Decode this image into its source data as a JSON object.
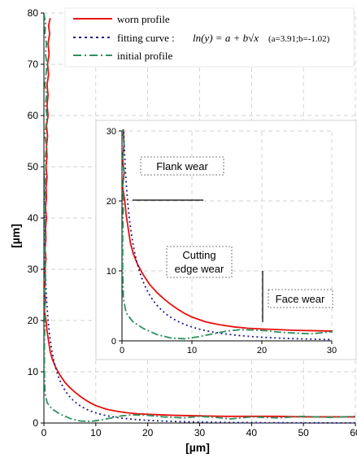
{
  "chart_data": [
    {
      "type": "line",
      "xlabel": "[µm]",
      "ylabel": "[µm]",
      "xlim": [
        0,
        60
      ],
      "ylim": [
        0,
        80
      ],
      "xticks": [
        "0",
        "10",
        "20",
        "30",
        "40",
        "50",
        "60"
      ],
      "yticks": [
        "0",
        "10",
        "20",
        "30",
        "40",
        "50",
        "60",
        "70",
        "80"
      ],
      "grid": "dashed",
      "legend_position": "top",
      "legend": {
        "worn": "worn profile",
        "fit": "fitting curve :",
        "fit_formula": "ln(y) = a + b√x",
        "fit_params": "(a=3.91;b=-1.02)",
        "initial": "initial profile"
      },
      "series": [
        {
          "name": "worn profile",
          "color": "#e8100c",
          "style": "solid",
          "points": [
            [
              1.2,
              79
            ],
            [
              0.9,
              77.5
            ],
            [
              1.1,
              76
            ],
            [
              0.8,
              74
            ],
            [
              1.0,
              72
            ],
            [
              0.7,
              70
            ],
            [
              0.9,
              68
            ],
            [
              0.6,
              66
            ],
            [
              0.8,
              64
            ],
            [
              0.6,
              62
            ],
            [
              0.8,
              60
            ],
            [
              0.5,
              58
            ],
            [
              0.7,
              56
            ],
            [
              0.5,
              54
            ],
            [
              0.6,
              52
            ],
            [
              0.4,
              50
            ],
            [
              0.6,
              48
            ],
            [
              0.4,
              46
            ],
            [
              0.5,
              44
            ],
            [
              0.3,
              42
            ],
            [
              0.5,
              40
            ],
            [
              0.3,
              38
            ],
            [
              0.4,
              36
            ],
            [
              0.2,
              34
            ],
            [
              0.4,
              32
            ],
            [
              0.2,
              30
            ],
            [
              0.3,
              28
            ],
            [
              0.1,
              26
            ],
            [
              0.3,
              24
            ],
            [
              0.1,
              22
            ],
            [
              0.4,
              20
            ],
            [
              0.6,
              18
            ],
            [
              0.9,
              16
            ],
            [
              1.2,
              14
            ],
            [
              1.6,
              12.5
            ],
            [
              2.2,
              11
            ],
            [
              3,
              9.5
            ],
            [
              4,
              8
            ],
            [
              5,
              6.9
            ],
            [
              6,
              6
            ],
            [
              7,
              5.2
            ],
            [
              8,
              4.5
            ],
            [
              9,
              3.9
            ],
            [
              10,
              3.4
            ],
            [
              12,
              2.7
            ],
            [
              14,
              2.3
            ],
            [
              16,
              2.0
            ],
            [
              18,
              1.8
            ],
            [
              20,
              1.7
            ],
            [
              25,
              1.5
            ],
            [
              30,
              1.4
            ],
            [
              35,
              1.3
            ],
            [
              40,
              1.3
            ],
            [
              45,
              1.3
            ],
            [
              50,
              1.2
            ],
            [
              55,
              1.2
            ],
            [
              60,
              1.2
            ]
          ]
        },
        {
          "name": "fitting curve : ln(y) = a + b√x (a=3.91;b=-1.02)",
          "color": "#1f1f8c",
          "style": "dotted",
          "function": {
            "a": 3.91,
            "b": -1.02
          }
        },
        {
          "name": "initial profile",
          "color": "#2f8f60",
          "style": "dashdot",
          "points": [
            [
              0.0,
              80
            ],
            [
              0.3,
              78
            ],
            [
              0.2,
              76
            ],
            [
              0.5,
              74
            ],
            [
              0.3,
              72
            ],
            [
              0.6,
              70
            ],
            [
              0.4,
              68
            ],
            [
              0.2,
              66
            ],
            [
              0.5,
              64
            ],
            [
              0.3,
              62
            ],
            [
              0.6,
              60
            ],
            [
              0.4,
              58
            ],
            [
              0.2,
              56
            ],
            [
              0.5,
              54
            ],
            [
              0.3,
              52
            ],
            [
              0.0,
              50
            ],
            [
              0.3,
              48
            ],
            [
              0.1,
              46
            ],
            [
              0.3,
              44
            ],
            [
              0.1,
              42
            ],
            [
              0.3,
              40
            ],
            [
              0.1,
              38
            ],
            [
              0.3,
              36
            ],
            [
              0.1,
              34
            ],
            [
              0.3,
              32
            ],
            [
              0.1,
              30
            ],
            [
              0.3,
              28
            ],
            [
              0.1,
              26
            ],
            [
              0.3,
              24
            ],
            [
              0.1,
              22
            ],
            [
              0.2,
              20
            ],
            [
              0.1,
              15
            ],
            [
              0.1,
              10
            ],
            [
              0.2,
              6
            ],
            [
              0.6,
              4
            ],
            [
              1.5,
              2.8
            ],
            [
              3,
              1.8
            ],
            [
              5,
              0.9
            ],
            [
              7,
              0.4
            ],
            [
              9,
              0.3
            ],
            [
              11,
              0.6
            ],
            [
              13,
              1.0
            ],
            [
              15,
              1.4
            ],
            [
              17,
              1.6
            ],
            [
              20,
              1.5
            ],
            [
              23,
              1.2
            ],
            [
              27,
              1.0
            ],
            [
              30,
              1.3
            ],
            [
              33,
              1.1
            ],
            [
              36,
              0.8
            ],
            [
              40,
              1.2
            ],
            [
              45,
              1.0
            ],
            [
              50,
              1.3
            ],
            [
              55,
              1.1
            ],
            [
              60,
              1.3
            ]
          ]
        }
      ]
    },
    {
      "type": "line",
      "xlim": [
        0,
        30
      ],
      "ylim": [
        0,
        30
      ],
      "xticks": [
        "0",
        "10",
        "20",
        "30"
      ],
      "yticks": [
        "0",
        "10",
        "20",
        "30"
      ],
      "annotations": [
        "Flank wear",
        "Cutting edge wear",
        "Face wear"
      ],
      "annotation_lines": [
        "Cutting",
        "edge wear"
      ]
    }
  ]
}
